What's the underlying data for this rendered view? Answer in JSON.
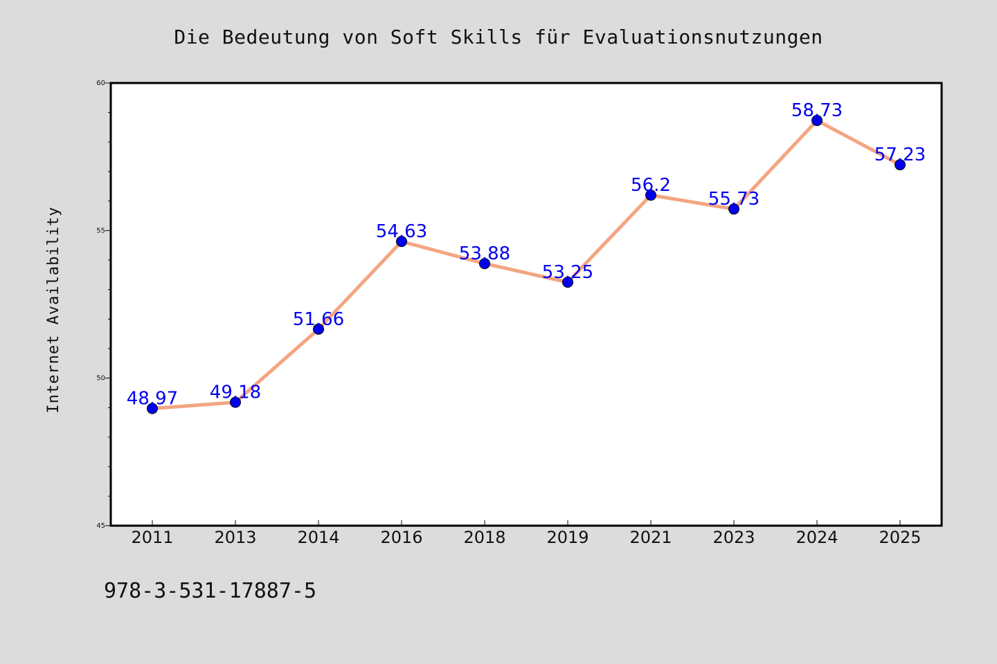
{
  "chart_data": {
    "type": "line",
    "title": "Die Bedeutung von Soft Skills für Evaluationsnutzungen",
    "xlabel": "",
    "ylabel": "Internet Availability",
    "categories": [
      "2011",
      "2013",
      "2014",
      "2016",
      "2018",
      "2019",
      "2021",
      "2023",
      "2024",
      "2025"
    ],
    "series": [
      {
        "values": [
          48.97,
          49.18,
          51.66,
          54.63,
          53.88,
          53.25,
          56.2,
          55.73,
          58.73,
          57.23
        ],
        "labels": [
          "48.97",
          "49.18",
          "51.66",
          "54.63",
          "53.88",
          "53.25",
          "56.2",
          "55.73",
          "58.73",
          "57.23"
        ]
      }
    ],
    "ylim": [
      45,
      60
    ],
    "yticks": [
      "45",
      "50",
      "55",
      "60"
    ],
    "grid": false,
    "legend": "none"
  },
  "footer": {
    "isbn": "978-3-531-17887-5"
  },
  "colors": {
    "background": "#dcdcdc",
    "plot_background": "#ffffff",
    "line": "#f4a582",
    "marker": "#0000ee",
    "data_label": "#0000ee"
  }
}
